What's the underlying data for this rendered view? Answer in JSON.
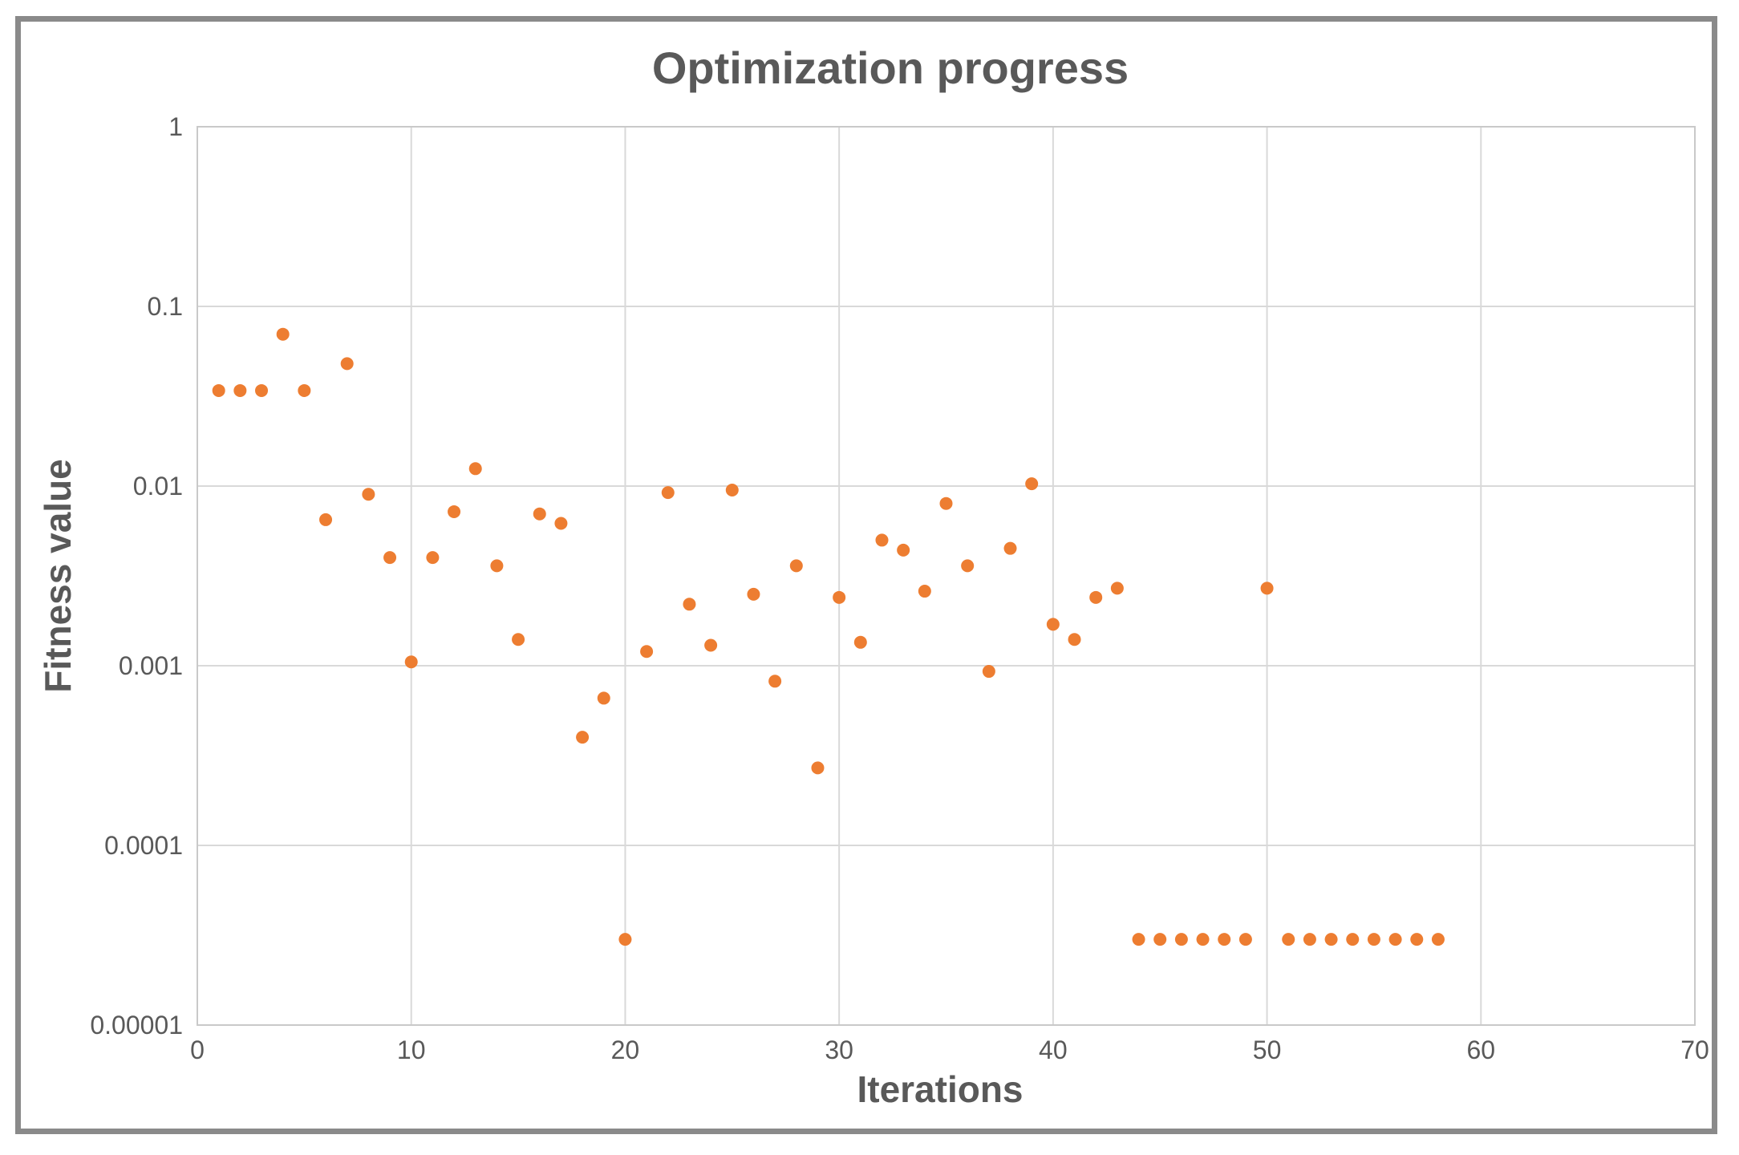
{
  "figure": {
    "background_color": "#ffffff",
    "border_color": "#8a8a8a",
    "text_color": "#595959",
    "gridline_color": "#d9d9d9",
    "plot_border_color": "#c9c9c9",
    "marker_color": "#ED7D31"
  },
  "chart_data": {
    "type": "scatter",
    "title": "Optimization progress",
    "xlabel": "Iterations",
    "ylabel": "Fitness value",
    "legend": "none",
    "grid": true,
    "x_axis": {
      "min": 0,
      "max": 70,
      "ticks": [
        0,
        10,
        20,
        30,
        40,
        50,
        60,
        70
      ]
    },
    "y_axis": {
      "scale": "log",
      "min": 1e-05,
      "max": 1,
      "tick_labels": [
        "1",
        "0.1",
        "0.01",
        "0.001",
        "0.0001",
        "0.00001"
      ],
      "tick_values": [
        1,
        0.1,
        0.01,
        0.001,
        0.0001,
        1e-05
      ]
    },
    "series": [
      {
        "name": "Fitness value",
        "points": [
          [
            1,
            0.034
          ],
          [
            2,
            0.034
          ],
          [
            3,
            0.034
          ],
          [
            4,
            0.07
          ],
          [
            5,
            0.034
          ],
          [
            6,
            0.0065
          ],
          [
            7,
            0.048
          ],
          [
            8,
            0.009
          ],
          [
            9,
            0.004
          ],
          [
            10,
            0.00105
          ],
          [
            11,
            0.004
          ],
          [
            12,
            0.0072
          ],
          [
            13,
            0.0125
          ],
          [
            14,
            0.0036
          ],
          [
            15,
            0.0014
          ],
          [
            16,
            0.007
          ],
          [
            17,
            0.0062
          ],
          [
            18,
            0.0004
          ],
          [
            19,
            0.00066
          ],
          [
            20,
            3e-05
          ],
          [
            21,
            0.0012
          ],
          [
            22,
            0.0092
          ],
          [
            23,
            0.0022
          ],
          [
            24,
            0.0013
          ],
          [
            25,
            0.0095
          ],
          [
            26,
            0.0025
          ],
          [
            27,
            0.00082
          ],
          [
            28,
            0.0036
          ],
          [
            29,
            0.00027
          ],
          [
            30,
            0.0024
          ],
          [
            31,
            0.00135
          ],
          [
            32,
            0.005
          ],
          [
            33,
            0.0044
          ],
          [
            34,
            0.0026
          ],
          [
            35,
            0.008
          ],
          [
            36,
            0.0036
          ],
          [
            37,
            0.00093
          ],
          [
            38,
            0.0045
          ],
          [
            39,
            0.0103
          ],
          [
            40,
            0.0017
          ],
          [
            41,
            0.0014
          ],
          [
            42,
            0.0024
          ],
          [
            43,
            0.0027
          ],
          [
            44,
            3e-05
          ],
          [
            45,
            3e-05
          ],
          [
            46,
            3e-05
          ],
          [
            47,
            3e-05
          ],
          [
            48,
            3e-05
          ],
          [
            49,
            3e-05
          ],
          [
            50,
            0.0027
          ],
          [
            51,
            3e-05
          ],
          [
            52,
            3e-05
          ],
          [
            53,
            3e-05
          ],
          [
            54,
            3e-05
          ],
          [
            55,
            3e-05
          ],
          [
            56,
            3e-05
          ],
          [
            57,
            3e-05
          ],
          [
            58,
            3e-05
          ]
        ]
      }
    ]
  }
}
